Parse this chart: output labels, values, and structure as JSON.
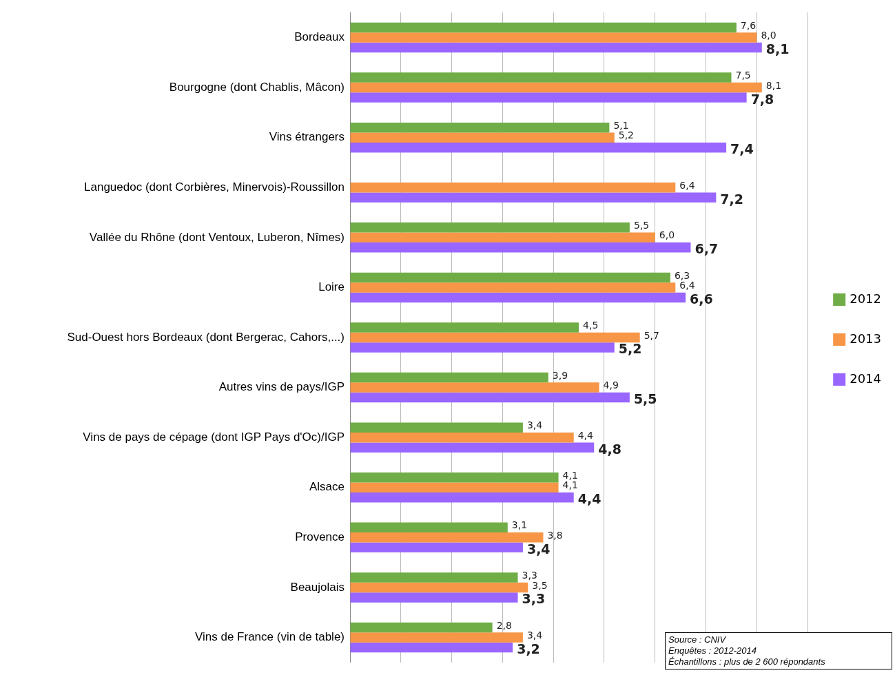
{
  "chart_data": {
    "type": "bar",
    "orientation": "horizontal",
    "categories": [
      "Bordeaux",
      "Bourgogne (dont Chablis, Mâcon)",
      "Vins étrangers",
      "Languedoc (dont Corbières, Minervois)-Roussillon",
      "Vallée du Rhône (dont Ventoux, Luberon, Nîmes)",
      "Loire",
      "Sud-Ouest hors Bordeaux (dont Bergerac, Cahors,...)",
      "Autres vins de pays/IGP",
      "Vins de pays de cépage (dont IGP Pays d'Oc)/IGP",
      "Alsace",
      "Provence",
      "Beaujolais",
      "Vins de France (vin de table)"
    ],
    "series": [
      {
        "name": "2012",
        "color": "#70ad47",
        "values": [
          7.6,
          7.5,
          5.1,
          null,
          5.5,
          6.3,
          4.5,
          3.9,
          3.4,
          4.1,
          3.1,
          3.3,
          2.8
        ],
        "value_labels": [
          "7,6",
          "7,5",
          "5,1",
          null,
          "5,5",
          "6,3",
          "4,5",
          "3,9",
          "3,4",
          "4,1",
          "3,1",
          "3,3",
          "2,8"
        ]
      },
      {
        "name": "2013",
        "color": "#f79646",
        "values": [
          8.0,
          8.1,
          5.2,
          6.4,
          6.0,
          6.4,
          5.7,
          4.9,
          4.4,
          4.1,
          3.8,
          3.5,
          3.4
        ],
        "value_labels": [
          "8,0",
          "8,1",
          "5,2",
          "6,4",
          "6,0",
          "6,4",
          "5,7",
          "4,9",
          "4,4",
          "4,1",
          "3,8",
          "3,5",
          "3,4"
        ]
      },
      {
        "name": "2014",
        "color": "#9966ff",
        "values": [
          8.1,
          7.8,
          7.4,
          7.2,
          6.7,
          6.6,
          5.2,
          5.5,
          4.8,
          4.4,
          3.4,
          3.3,
          3.2
        ],
        "value_labels": [
          "8,1",
          "7,8",
          "7,4",
          "7,2",
          "6,7",
          "6,6",
          "5,2",
          "5,5",
          "4,8",
          "4,4",
          "3,4",
          "3,3",
          "3,2"
        ]
      }
    ],
    "xlim": [
      0,
      9
    ],
    "xticks": [
      {
        "value": 0,
        "label": null
      },
      {
        "value": 1,
        "label": null
      },
      {
        "value": 2,
        "label": null
      },
      {
        "value": 3,
        "label": null
      },
      {
        "value": 4,
        "label": null
      },
      {
        "value": 5,
        "label": null
      },
      {
        "value": 6,
        "label": null
      },
      {
        "value": 7,
        "label": null
      },
      {
        "value": 8,
        "label": null
      },
      {
        "value": 9,
        "label": null
      }
    ],
    "grid": "x",
    "legend": "right",
    "tick_labels": "y",
    "annotations": [
      "Source : CNIV",
      "Enquêtes : 2012-2014",
      "Échantillons : plus de 2 600 répondants"
    ]
  }
}
